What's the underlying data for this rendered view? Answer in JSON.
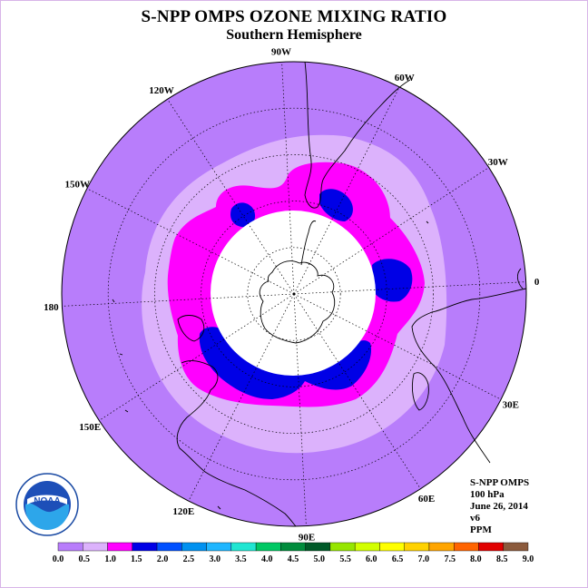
{
  "title": "S-NPP OMPS OZONE MIXING RATIO",
  "subtitle": "Southern Hemisphere",
  "longitude_labels": [
    {
      "text": "90W",
      "lon": -90
    },
    {
      "text": "60W",
      "lon": -60
    },
    {
      "text": "30W",
      "lon": -30
    },
    {
      "text": "0",
      "lon": 0
    },
    {
      "text": "30E",
      "lon": 30
    },
    {
      "text": "60E",
      "lon": 60
    },
    {
      "text": "90E",
      "lon": 90
    },
    {
      "text": "120E",
      "lon": 120
    },
    {
      "text": "150E",
      "lon": 150
    },
    {
      "text": "180",
      "lon": 180
    },
    {
      "text": "150W",
      "lon": -150
    },
    {
      "text": "120W",
      "lon": -120
    }
  ],
  "info": {
    "product": "S-NPP OMPS",
    "level": "100 hPa",
    "date": "June 26, 2014",
    "version": "v6",
    "units": "PPM"
  },
  "logo": {
    "text": "NOAA",
    "ring_text": "NATIONAL OCEANIC AND ATMOSPHERIC ADMINISTRATION · U.S. DEPARTMENT OF COMMERCE"
  },
  "colorbar": {
    "ticks": [
      "0.0",
      "0.5",
      "1.0",
      "1.5",
      "2.0",
      "2.5",
      "3.0",
      "3.5",
      "4.0",
      "4.5",
      "5.0",
      "5.5",
      "6.0",
      "6.5",
      "7.0",
      "7.5",
      "8.0",
      "8.5",
      "9.0"
    ],
    "colors": [
      "#b87dfb",
      "#dcb2fc",
      "#ff00ff",
      "#0000e6",
      "#0050ff",
      "#0091f0",
      "#1fb6ff",
      "#20e6d2",
      "#00c864",
      "#008c3c",
      "#005a28",
      "#96e600",
      "#d2ff00",
      "#ffff00",
      "#ffd200",
      "#ffa500",
      "#ff6400",
      "#e10000",
      "#8b5a3c"
    ]
  },
  "field_colors": {
    "background": "#b87dfb",
    "band_0_5_1_0": "#dcb2fc",
    "band_1_0_1_5": "#ff00ff",
    "band_1_5_2_0": "#0000e6",
    "no_data": "#ffffff"
  }
}
